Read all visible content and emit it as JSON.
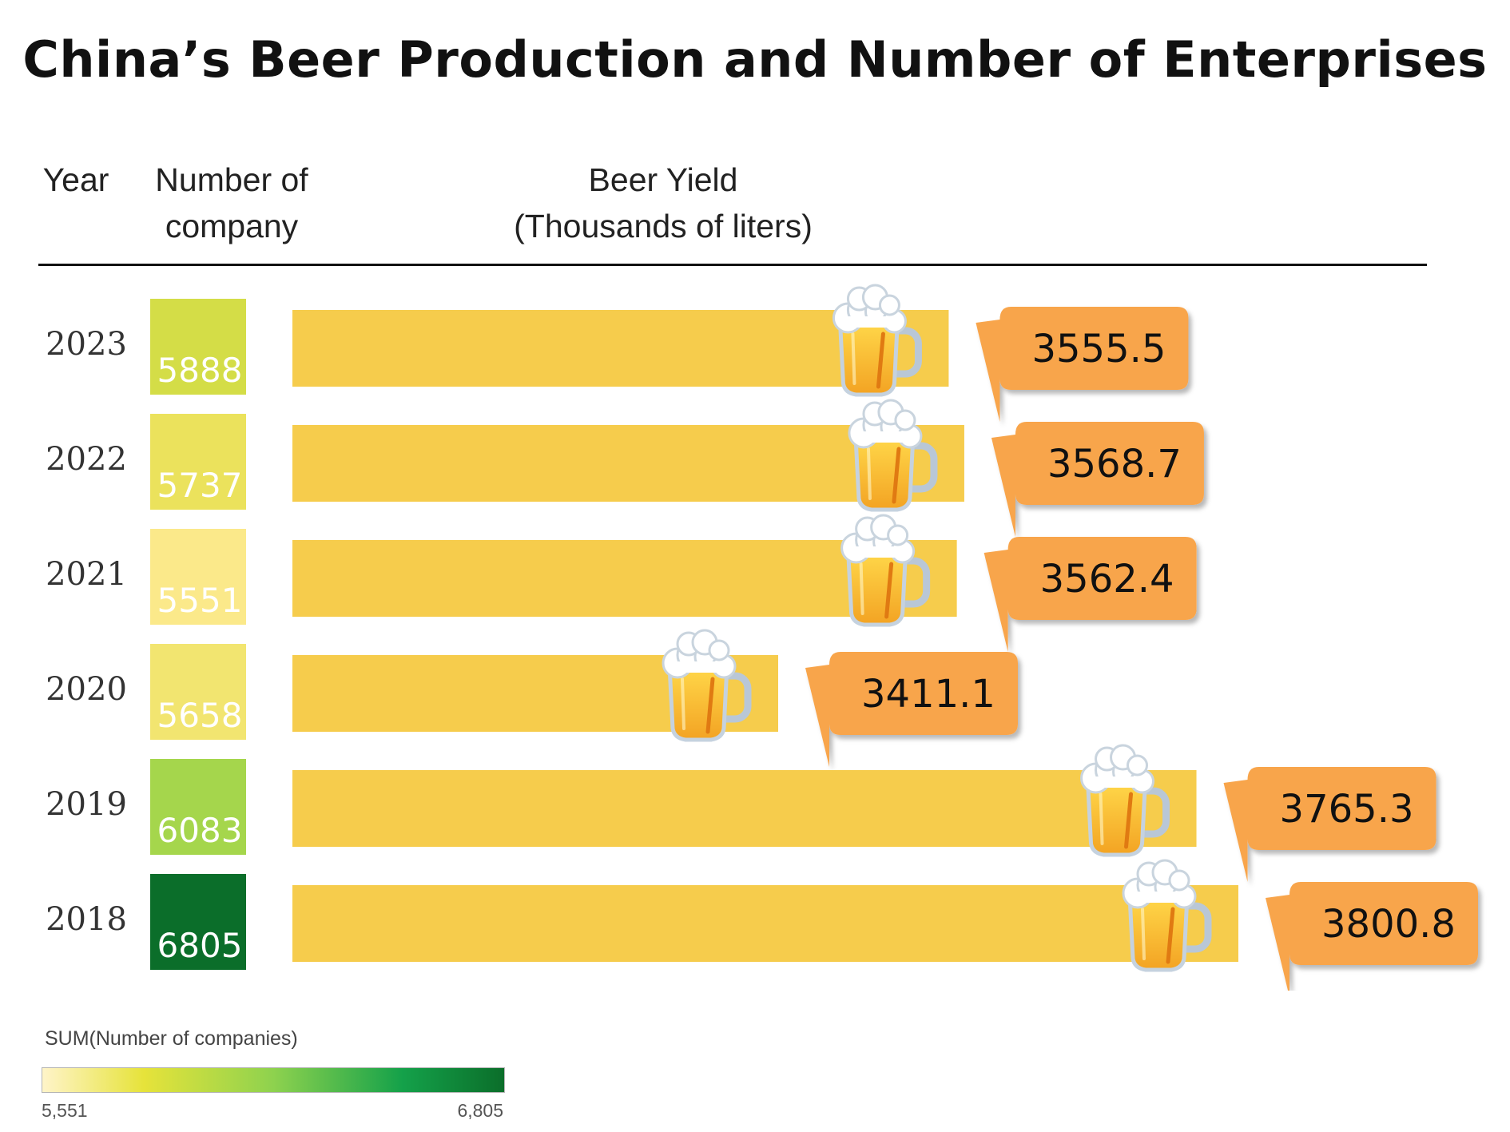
{
  "title": "China’s Beer Production and Number of Enterprises",
  "headers": {
    "year": "Year",
    "number_line1": "Number of",
    "number_line2": "company",
    "yield_line1": "Beer Yield",
    "yield_line2": "(Thousands of liters)"
  },
  "legend": {
    "title": "SUM(Number of companies)",
    "min_label": "5,551",
    "max_label": "6,805",
    "min_value": 5551,
    "max_value": 6805
  },
  "colors": {
    "bar": "#f6cc4c",
    "bubble": "#f8a54c",
    "heat_low": "#fbe98a",
    "heat_high": "#0b6e2a"
  },
  "chart_data": {
    "type": "bar",
    "orientation": "horizontal",
    "title": "China’s Beer Production and Number of Enterprises",
    "xlabel": "Beer Yield (Thousands of liters)",
    "ylabel": "Year",
    "categories": [
      "2023",
      "2022",
      "2021",
      "2020",
      "2019",
      "2018"
    ],
    "series": [
      {
        "name": "Beer Yield",
        "values": [
          3555.5,
          3568.7,
          3562.4,
          3411.1,
          3765.3,
          3800.8
        ]
      },
      {
        "name": "Number of company",
        "values": [
          5888,
          5737,
          5551,
          5658,
          6083,
          6805
        ]
      }
    ],
    "value_labels": [
      "3555.5",
      "3568.7",
      "3562.4",
      "3411.1",
      "3765.3",
      "3800.8"
    ],
    "count_labels": [
      "5888",
      "5737",
      "5551",
      "5658",
      "6083",
      "6805"
    ]
  }
}
